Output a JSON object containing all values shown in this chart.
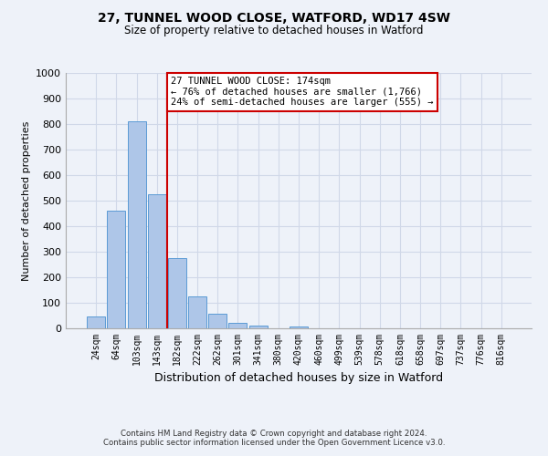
{
  "title": "27, TUNNEL WOOD CLOSE, WATFORD, WD17 4SW",
  "subtitle": "Size of property relative to detached houses in Watford",
  "xlabel": "Distribution of detached houses by size in Watford",
  "ylabel": "Number of detached properties",
  "bar_labels": [
    "24sqm",
    "64sqm",
    "103sqm",
    "143sqm",
    "182sqm",
    "222sqm",
    "262sqm",
    "301sqm",
    "341sqm",
    "380sqm",
    "420sqm",
    "460sqm",
    "499sqm",
    "539sqm",
    "578sqm",
    "618sqm",
    "658sqm",
    "697sqm",
    "737sqm",
    "776sqm",
    "816sqm"
  ],
  "bar_values": [
    47,
    462,
    810,
    525,
    275,
    125,
    58,
    22,
    12,
    0,
    6,
    0,
    0,
    0,
    0,
    0,
    0,
    0,
    0,
    0,
    0
  ],
  "bar_color": "#aec6e8",
  "bar_edge_color": "#5b9bd5",
  "vline_color": "#cc0000",
  "annotation_box_text": "27 TUNNEL WOOD CLOSE: 174sqm\n← 76% of detached houses are smaller (1,766)\n24% of semi-detached houses are larger (555) →",
  "annotation_box_color": "#cc0000",
  "ylim": [
    0,
    1000
  ],
  "yticks": [
    0,
    100,
    200,
    300,
    400,
    500,
    600,
    700,
    800,
    900,
    1000
  ],
  "grid_color": "#d0d8e8",
  "background_color": "#eef2f9",
  "footer_line1": "Contains HM Land Registry data © Crown copyright and database right 2024.",
  "footer_line2": "Contains public sector information licensed under the Open Government Licence v3.0."
}
